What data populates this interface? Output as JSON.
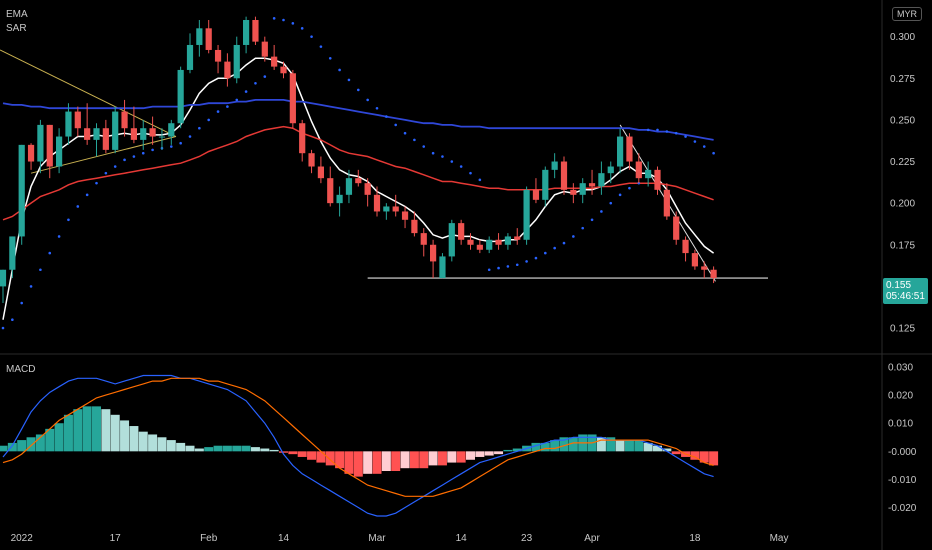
{
  "currency_badge": "MYR",
  "indicator_labels": {
    "ema": "EMA",
    "sar": "SAR",
    "macd": "MACD"
  },
  "last_price": "0.155",
  "countdown": "05:46:51",
  "colors": {
    "up": "#26a69a",
    "down": "#ef5350",
    "ema_fast": "#ffffff",
    "ema_mid": "#e53935",
    "ema_slow": "#2f47d8",
    "sar": "#2962ff",
    "macd_line": "#2962ff",
    "signal_line": "#ff6d00",
    "hist_up_strong": "#26a69a",
    "hist_up_weak": "#b2dfdb",
    "hist_down_strong": "#ff5252",
    "hist_down_weak": "#ffcdd2",
    "trendline": "#c8b050"
  },
  "chart_data": [
    {
      "type": "candlestick",
      "y_ticks": [
        "0.300",
        "0.275",
        "0.250",
        "0.225",
        "0.200",
        "0.175",
        "0.125"
      ],
      "y_range": [
        0.113,
        0.313
      ],
      "x_ticks": [
        "2022",
        "17",
        "Feb",
        "14",
        "Mar",
        "14",
        "23",
        "Apr",
        "18",
        "May"
      ],
      "support_level": 0.155,
      "candles": [
        [
          0.15,
          0.16,
          0.14,
          0.16
        ],
        [
          0.16,
          0.18,
          0.155,
          0.18
        ],
        [
          0.18,
          0.235,
          0.175,
          0.235
        ],
        [
          0.235,
          0.236,
          0.22,
          0.225
        ],
        [
          0.225,
          0.25,
          0.218,
          0.247
        ],
        [
          0.247,
          0.247,
          0.215,
          0.222
        ],
        [
          0.222,
          0.245,
          0.218,
          0.24
        ],
        [
          0.24,
          0.26,
          0.235,
          0.255
        ],
        [
          0.255,
          0.258,
          0.24,
          0.245
        ],
        [
          0.245,
          0.26,
          0.235,
          0.238
        ],
        [
          0.238,
          0.248,
          0.228,
          0.245
        ],
        [
          0.245,
          0.25,
          0.23,
          0.232
        ],
        [
          0.232,
          0.258,
          0.23,
          0.255
        ],
        [
          0.255,
          0.262,
          0.24,
          0.245
        ],
        [
          0.245,
          0.258,
          0.236,
          0.238
        ],
        [
          0.238,
          0.25,
          0.232,
          0.245
        ],
        [
          0.245,
          0.252,
          0.235,
          0.24
        ],
        [
          0.24,
          0.245,
          0.232,
          0.24
        ],
        [
          0.24,
          0.25,
          0.235,
          0.248
        ],
        [
          0.248,
          0.282,
          0.245,
          0.28
        ],
        [
          0.28,
          0.302,
          0.278,
          0.295
        ],
        [
          0.295,
          0.31,
          0.288,
          0.305
        ],
        [
          0.305,
          0.31,
          0.29,
          0.292
        ],
        [
          0.292,
          0.295,
          0.278,
          0.285
        ],
        [
          0.285,
          0.29,
          0.27,
          0.275
        ],
        [
          0.275,
          0.3,
          0.272,
          0.295
        ],
        [
          0.295,
          0.312,
          0.29,
          0.31
        ],
        [
          0.31,
          0.312,
          0.295,
          0.297
        ],
        [
          0.297,
          0.3,
          0.285,
          0.288
        ],
        [
          0.288,
          0.295,
          0.28,
          0.282
        ],
        [
          0.282,
          0.285,
          0.275,
          0.278
        ],
        [
          0.278,
          0.28,
          0.245,
          0.248
        ],
        [
          0.248,
          0.25,
          0.225,
          0.23
        ],
        [
          0.23,
          0.232,
          0.218,
          0.222
        ],
        [
          0.222,
          0.228,
          0.212,
          0.215
        ],
        [
          0.215,
          0.222,
          0.198,
          0.2
        ],
        [
          0.2,
          0.21,
          0.192,
          0.205
        ],
        [
          0.205,
          0.22,
          0.2,
          0.215
        ],
        [
          0.215,
          0.22,
          0.21,
          0.212
        ],
        [
          0.212,
          0.215,
          0.198,
          0.205
        ],
        [
          0.205,
          0.21,
          0.192,
          0.195
        ],
        [
          0.195,
          0.2,
          0.19,
          0.198
        ],
        [
          0.198,
          0.205,
          0.192,
          0.195
        ],
        [
          0.195,
          0.198,
          0.185,
          0.19
        ],
        [
          0.19,
          0.195,
          0.18,
          0.182
        ],
        [
          0.182,
          0.185,
          0.168,
          0.175
        ],
        [
          0.175,
          0.178,
          0.155,
          0.165
        ],
        [
          0.155,
          0.17,
          0.155,
          0.168
        ],
        [
          0.168,
          0.19,
          0.165,
          0.188
        ],
        [
          0.188,
          0.19,
          0.175,
          0.178
        ],
        [
          0.178,
          0.182,
          0.172,
          0.175
        ],
        [
          0.175,
          0.178,
          0.17,
          0.172
        ],
        [
          0.172,
          0.18,
          0.17,
          0.178
        ],
        [
          0.178,
          0.182,
          0.172,
          0.175
        ],
        [
          0.175,
          0.182,
          0.172,
          0.18
        ],
        [
          0.18,
          0.185,
          0.175,
          0.178
        ],
        [
          0.178,
          0.21,
          0.175,
          0.208
        ],
        [
          0.208,
          0.215,
          0.2,
          0.202
        ],
        [
          0.202,
          0.222,
          0.198,
          0.22
        ],
        [
          0.22,
          0.23,
          0.215,
          0.225
        ],
        [
          0.225,
          0.228,
          0.205,
          0.208
        ],
        [
          0.208,
          0.212,
          0.2,
          0.205
        ],
        [
          0.205,
          0.215,
          0.2,
          0.212
        ],
        [
          0.212,
          0.22,
          0.205,
          0.21
        ],
        [
          0.21,
          0.225,
          0.205,
          0.218
        ],
        [
          0.218,
          0.225,
          0.212,
          0.222
        ],
        [
          0.222,
          0.245,
          0.218,
          0.24
        ],
        [
          0.24,
          0.242,
          0.22,
          0.225
        ],
        [
          0.225,
          0.23,
          0.212,
          0.215
        ],
        [
          0.215,
          0.225,
          0.21,
          0.22
        ],
        [
          0.22,
          0.222,
          0.205,
          0.208
        ],
        [
          0.208,
          0.212,
          0.19,
          0.192
        ],
        [
          0.192,
          0.195,
          0.175,
          0.178
        ],
        [
          0.178,
          0.18,
          0.165,
          0.17
        ],
        [
          0.17,
          0.172,
          0.16,
          0.162
        ],
        [
          0.162,
          0.165,
          0.155,
          0.16
        ],
        [
          0.16,
          0.162,
          0.152,
          0.155
        ]
      ],
      "series": [
        {
          "name": "EMA",
          "values": [
            0.13,
            0.16,
            0.19,
            0.21,
            0.222,
            0.228,
            0.232,
            0.236,
            0.24,
            0.24,
            0.241,
            0.24,
            0.241,
            0.242,
            0.241,
            0.242,
            0.241,
            0.241,
            0.242,
            0.247,
            0.256,
            0.266,
            0.272,
            0.275,
            0.275,
            0.278,
            0.283,
            0.287,
            0.287,
            0.286,
            0.284,
            0.277,
            0.263,
            0.249,
            0.237,
            0.227,
            0.22,
            0.217,
            0.216,
            0.213,
            0.207,
            0.204,
            0.201,
            0.198,
            0.194,
            0.188,
            0.181,
            0.179,
            0.181,
            0.18,
            0.18,
            0.178,
            0.177,
            0.177,
            0.178,
            0.178,
            0.184,
            0.19,
            0.198,
            0.205,
            0.207,
            0.206,
            0.208,
            0.208,
            0.21,
            0.214,
            0.219,
            0.222,
            0.218,
            0.218,
            0.215,
            0.208,
            0.198,
            0.188,
            0.181,
            0.174,
            0.17
          ]
        },
        {
          "name": "EMA",
          "values": [
            0.19,
            0.192,
            0.196,
            0.2,
            0.204,
            0.206,
            0.208,
            0.211,
            0.213,
            0.214,
            0.215,
            0.216,
            0.217,
            0.218,
            0.219,
            0.22,
            0.221,
            0.222,
            0.223,
            0.224,
            0.226,
            0.228,
            0.231,
            0.233,
            0.235,
            0.237,
            0.24,
            0.242,
            0.244,
            0.245,
            0.246,
            0.245,
            0.242,
            0.24,
            0.238,
            0.235,
            0.232,
            0.23,
            0.229,
            0.228,
            0.226,
            0.224,
            0.222,
            0.221,
            0.219,
            0.217,
            0.215,
            0.213,
            0.213,
            0.212,
            0.211,
            0.21,
            0.209,
            0.209,
            0.208,
            0.208,
            0.208,
            0.208,
            0.208,
            0.209,
            0.209,
            0.209,
            0.209,
            0.209,
            0.21,
            0.21,
            0.211,
            0.212,
            0.212,
            0.212,
            0.212,
            0.211,
            0.21,
            0.208,
            0.206,
            0.204,
            0.202
          ]
        },
        {
          "name": "EMA",
          "values": [
            0.26,
            0.259,
            0.259,
            0.258,
            0.258,
            0.257,
            0.257,
            0.257,
            0.257,
            0.257,
            0.257,
            0.257,
            0.257,
            0.257,
            0.257,
            0.257,
            0.258,
            0.258,
            0.258,
            0.258,
            0.259,
            0.259,
            0.26,
            0.26,
            0.26,
            0.261,
            0.261,
            0.262,
            0.262,
            0.262,
            0.262,
            0.261,
            0.261,
            0.26,
            0.259,
            0.258,
            0.257,
            0.256,
            0.255,
            0.254,
            0.253,
            0.252,
            0.251,
            0.25,
            0.249,
            0.248,
            0.248,
            0.247,
            0.247,
            0.246,
            0.246,
            0.246,
            0.245,
            0.245,
            0.245,
            0.245,
            0.245,
            0.245,
            0.245,
            0.245,
            0.245,
            0.245,
            0.245,
            0.245,
            0.245,
            0.245,
            0.245,
            0.245,
            0.244,
            0.244,
            0.243,
            0.243,
            0.242,
            0.241,
            0.24,
            0.239,
            0.238
          ]
        },
        {
          "name": "SAR",
          "values": [
            0.125,
            0.13,
            0.14,
            0.15,
            0.16,
            0.17,
            0.18,
            0.19,
            0.198,
            0.205,
            0.212,
            0.218,
            0.222,
            0.226,
            0.228,
            0.23,
            0.232,
            0.233,
            0.234,
            0.236,
            0.24,
            0.245,
            0.25,
            0.255,
            0.258,
            0.262,
            0.267,
            0.272,
            0.276,
            0.311,
            0.31,
            0.308,
            0.305,
            0.3,
            0.294,
            0.287,
            0.28,
            0.274,
            0.268,
            0.262,
            0.257,
            0.252,
            0.247,
            0.242,
            0.238,
            0.234,
            0.23,
            0.228,
            0.225,
            0.222,
            0.218,
            0.214,
            0.16,
            0.161,
            0.162,
            0.163,
            0.165,
            0.167,
            0.17,
            0.173,
            0.176,
            0.18,
            0.185,
            0.19,
            0.195,
            0.2,
            0.205,
            0.209,
            0.212,
            0.244,
            0.244,
            0.243,
            0.242,
            0.24,
            0.237,
            0.234,
            0.23
          ]
        }
      ]
    },
    {
      "type": "bar",
      "name": "MACD",
      "y_ticks": [
        "0.030",
        "0.020",
        "0.010",
        "-0.000",
        "-0.010",
        "-0.020"
      ],
      "y_range": [
        -0.0255,
        0.0325
      ],
      "histogram": [
        0.002,
        0.003,
        0.004,
        0.005,
        0.006,
        0.008,
        0.01,
        0.013,
        0.015,
        0.016,
        0.016,
        0.015,
        0.013,
        0.011,
        0.009,
        0.007,
        0.006,
        0.005,
        0.004,
        0.003,
        0.002,
        0.001,
        0.0015,
        0.002,
        0.002,
        0.002,
        0.002,
        0.0015,
        0.001,
        0.0005,
        -0.0005,
        -0.001,
        -0.002,
        -0.003,
        -0.004,
        -0.005,
        -0.006,
        -0.008,
        -0.009,
        -0.008,
        -0.008,
        -0.007,
        -0.007,
        -0.006,
        -0.006,
        -0.006,
        -0.005,
        -0.005,
        -0.004,
        -0.004,
        -0.003,
        -0.002,
        -0.0015,
        -0.001,
        0.0005,
        0.001,
        0.002,
        0.003,
        0.003,
        0.004,
        0.005,
        0.005,
        0.006,
        0.006,
        0.005,
        0.005,
        0.004,
        0.004,
        0.004,
        0.003,
        0.002,
        0.001,
        -0.001,
        -0.002,
        -0.003,
        -0.004,
        -0.005
      ],
      "series": [
        {
          "name": "MACD",
          "values": [
            -0.002,
            0.002,
            0.008,
            0.014,
            0.018,
            0.021,
            0.023,
            0.025,
            0.026,
            0.026,
            0.026,
            0.025,
            0.024,
            0.025,
            0.026,
            0.027,
            0.027,
            0.027,
            0.027,
            0.026,
            0.026,
            0.025,
            0.024,
            0.023,
            0.022,
            0.02,
            0.018,
            0.014,
            0.01,
            0.005,
            -0.001,
            -0.005,
            -0.008,
            -0.01,
            -0.012,
            -0.014,
            -0.016,
            -0.018,
            -0.02,
            -0.022,
            -0.023,
            -0.023,
            -0.022,
            -0.02,
            -0.018,
            -0.016,
            -0.014,
            -0.012,
            -0.01,
            -0.008,
            -0.006,
            -0.004,
            -0.003,
            -0.002,
            -0.001,
            0.0,
            0.001,
            0.002,
            0.003,
            0.004,
            0.004,
            0.005,
            0.005,
            0.005,
            0.005,
            0.004,
            0.004,
            0.004,
            0.004,
            0.003,
            0.002,
            0.0,
            -0.002,
            -0.004,
            -0.006,
            -0.008,
            -0.009
          ]
        },
        {
          "name": "Signal",
          "values": [
            -0.004,
            -0.003,
            -0.001,
            0.002,
            0.005,
            0.008,
            0.011,
            0.013,
            0.015,
            0.017,
            0.019,
            0.02,
            0.021,
            0.022,
            0.023,
            0.024,
            0.025,
            0.025,
            0.026,
            0.026,
            0.026,
            0.026,
            0.025,
            0.025,
            0.024,
            0.023,
            0.022,
            0.02,
            0.018,
            0.015,
            0.012,
            0.009,
            0.006,
            0.003,
            0.0,
            -0.003,
            -0.006,
            -0.008,
            -0.01,
            -0.012,
            -0.013,
            -0.014,
            -0.015,
            -0.016,
            -0.016,
            -0.016,
            -0.016,
            -0.015,
            -0.014,
            -0.013,
            -0.011,
            -0.009,
            -0.007,
            -0.005,
            -0.003,
            -0.002,
            -0.001,
            0.0,
            0.001,
            0.001,
            0.002,
            0.003,
            0.003,
            0.003,
            0.004,
            0.004,
            0.004,
            0.004,
            0.004,
            0.004,
            0.003,
            0.002,
            0.001,
            -0.001,
            -0.002,
            -0.004,
            -0.005
          ]
        }
      ]
    }
  ]
}
